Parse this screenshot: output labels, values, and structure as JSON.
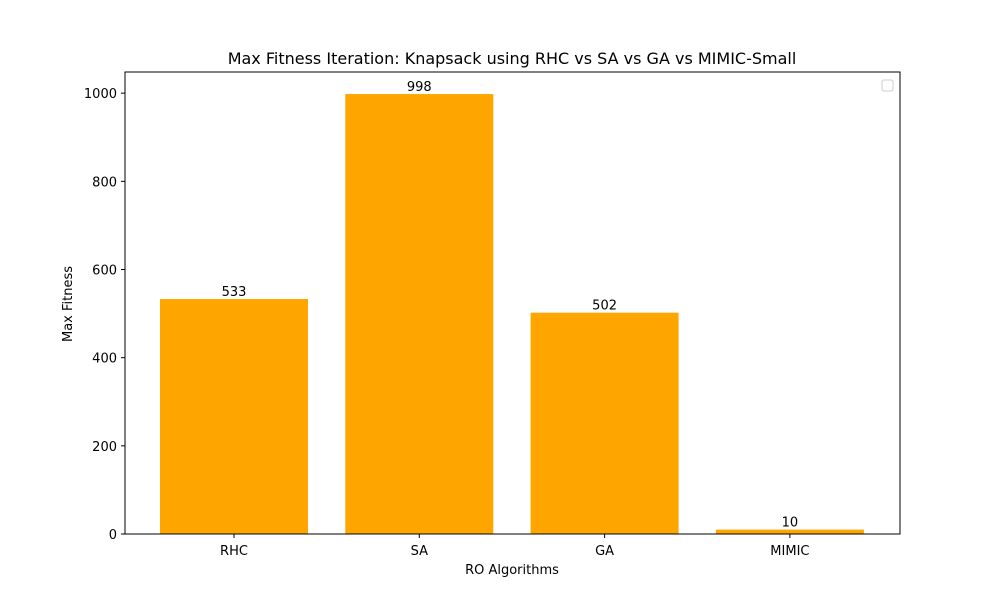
{
  "chart_data": {
    "type": "bar",
    "title": "Max Fitness Iteration: Knapsack using RHC vs SA vs GA vs MIMIC-Small",
    "xlabel": "RO Algorithms",
    "ylabel": "Max Fitness",
    "categories": [
      "RHC",
      "SA",
      "GA",
      "MIMIC"
    ],
    "values": [
      533,
      998,
      502,
      10
    ],
    "data_labels": [
      "533",
      "998",
      "502",
      "10"
    ],
    "ylim": [
      0,
      1048
    ],
    "yticks": [
      0,
      200,
      400,
      600,
      800,
      1000
    ],
    "ytick_labels": [
      "0",
      "200",
      "400",
      "600",
      "800",
      "1000"
    ],
    "bar_color": "#ffa500",
    "grid": false,
    "legend": "top-right (empty)"
  }
}
